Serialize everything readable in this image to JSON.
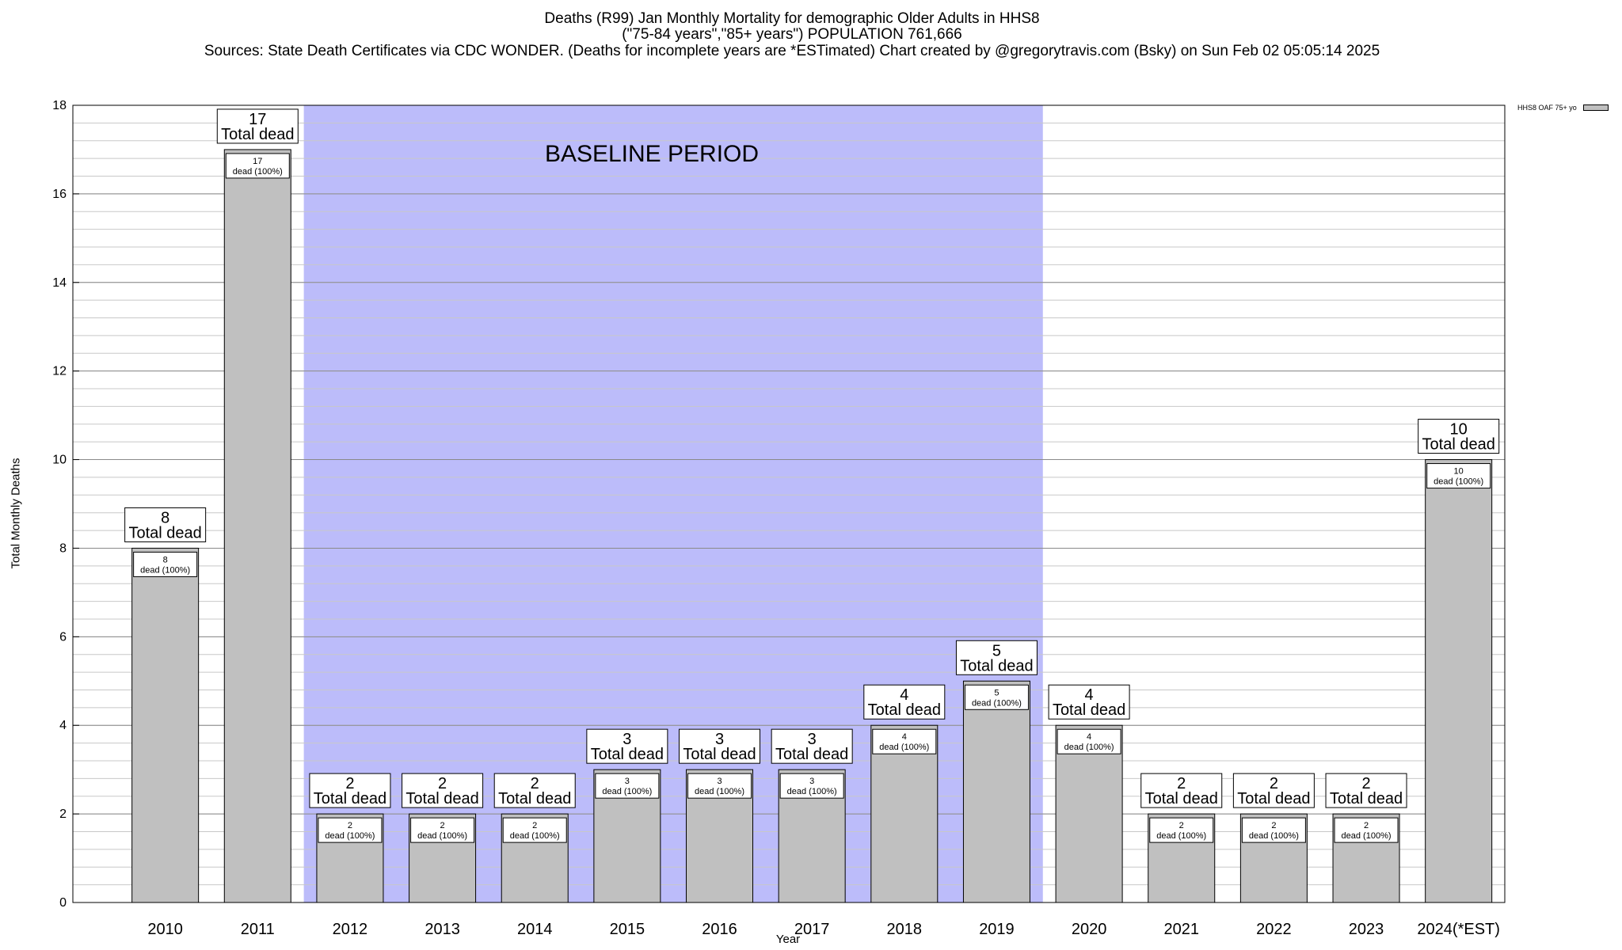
{
  "header": {
    "line1": "Deaths (R99) Jan Monthly Mortality for demographic Older Adults in HHS8",
    "line2": "(\"75-84 years\",\"85+ years\") POPULATION 761,666",
    "line3": "Sources: State Death Certificates via CDC WONDER. (Deaths for incomplete years are *ESTimated)                Chart created by @gregorytravis.com (Bsky) on Sun Feb 02 05:05:14 2025"
  },
  "chart_data": {
    "type": "bar",
    "title": "Deaths (R99) Jan Monthly Mortality for demographic Older Adults in HHS8",
    "xlabel": "Year",
    "ylabel": "Total Monthly Deaths",
    "ylim": [
      0,
      18
    ],
    "y_ticks": [
      0,
      2,
      4,
      6,
      8,
      10,
      12,
      14,
      16,
      18
    ],
    "grid": true,
    "legend_position": "top-right",
    "categories": [
      "2010",
      "2011",
      "2012",
      "2013",
      "2014",
      "2015",
      "2016",
      "2017",
      "2018",
      "2019",
      "2020",
      "2021",
      "2022",
      "2023",
      "2024(*EST)"
    ],
    "series": [
      {
        "name": "HHS8 OAF 75+ yo",
        "values": [
          8,
          17,
          2,
          2,
          2,
          3,
          3,
          3,
          4,
          5,
          4,
          2,
          2,
          2,
          10
        ]
      }
    ],
    "total_label": "Total dead",
    "bar_label_suffix": "dead (100%)",
    "baseline": {
      "label": "BASELINE PERIOD",
      "from": "2012",
      "to": "2019"
    },
    "colors": {
      "bar": "#c0c0c0",
      "baseline": "#bcbcfa",
      "grid": "#c8c8c8"
    }
  }
}
